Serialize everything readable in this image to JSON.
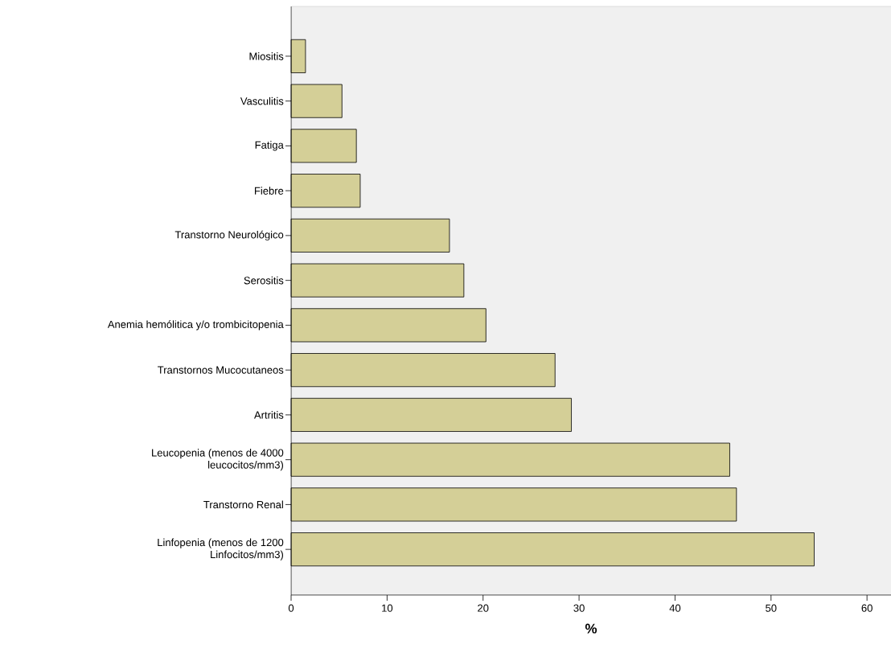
{
  "chart_data": {
    "type": "bar",
    "orientation": "horizontal",
    "xlabel": "%",
    "categories": [
      "Miositis",
      "Vasculitis",
      "Fatiga",
      "Fiebre",
      "Transtorno Neurológico",
      "Serositis",
      "Anemia hemólitica y/o trombicitopenia",
      "Transtornos Mucocutaneos",
      "Artritis",
      "Leucopenia (menos de 4000 leucocitos/mm3)",
      "Transtorno Renal",
      "Linfopenia (menos de 1200 Linfocitos/mm3)"
    ],
    "values": [
      1.5,
      5.3,
      6.8,
      7.2,
      16.5,
      18.0,
      20.3,
      27.5,
      29.2,
      45.7,
      46.4,
      54.5
    ],
    "color": "#d4cf97",
    "xlim": [
      0,
      62.5
    ],
    "xticks": [
      0,
      10,
      20,
      30,
      40,
      50,
      60
    ]
  }
}
